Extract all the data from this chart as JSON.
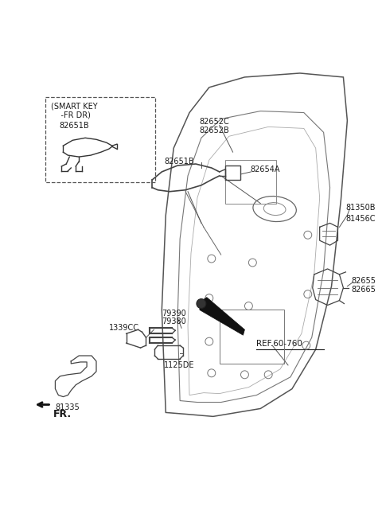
{
  "bg_color": "#ffffff",
  "line_color": "#1a1a1a",
  "fig_width": 4.8,
  "fig_height": 6.56,
  "dpi": 100,
  "labels": {
    "smart_key_title_line1": "(SMART KEY",
    "smart_key_title_line2": "    -FR DR)",
    "smart_key_part": "82651B",
    "part_82652C": "82652C",
    "part_82652B": "82652B",
    "part_82651B_main": "82651B",
    "part_82654A": "82654A",
    "part_81350B": "81350B",
    "part_81456C": "81456C",
    "part_82655": "82655",
    "part_82665": "82665",
    "part_79390": "79390",
    "part_79380": "79380",
    "part_1339CC": "1339CC",
    "part_1125DE": "1125DE",
    "part_81335": "81335",
    "ref_label": "REF.60-760",
    "fr_label": "FR."
  }
}
